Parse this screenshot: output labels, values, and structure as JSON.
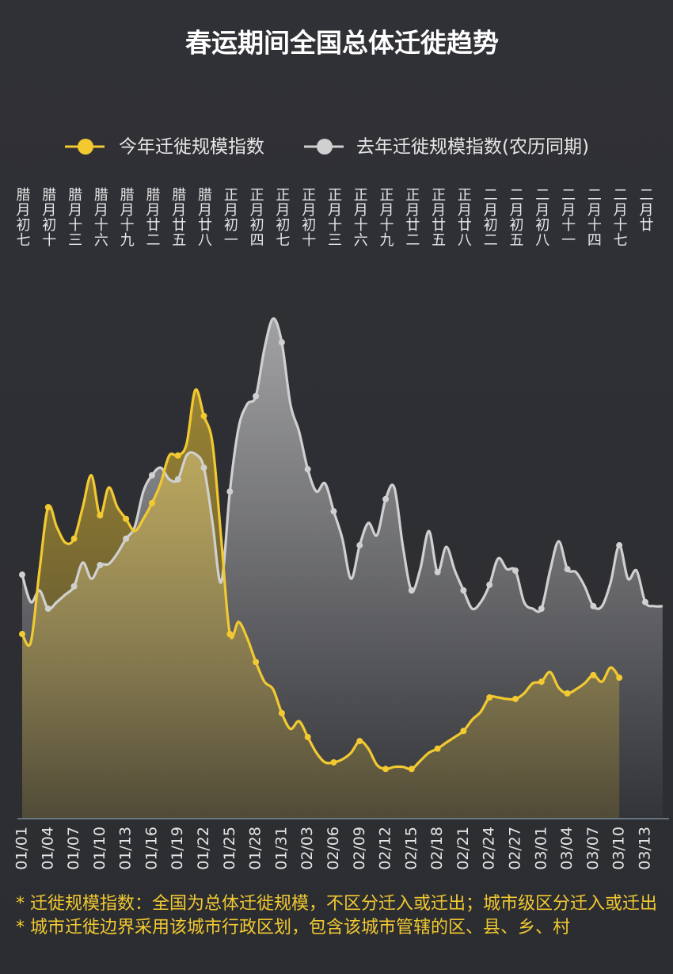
{
  "chart_data": {
    "type": "line",
    "title": "春运期间全国总体迁徙趋势",
    "categories": [
      "01/01",
      null,
      null,
      "01/04",
      null,
      null,
      "01/07",
      null,
      null,
      "01/10",
      null,
      null,
      "01/13",
      null,
      null,
      "01/16",
      null,
      null,
      "01/19",
      null,
      null,
      "01/22",
      null,
      null,
      "01/25",
      null,
      null,
      "01/28",
      null,
      null,
      "01/31",
      null,
      null,
      "02/03",
      null,
      null,
      "02/06",
      null,
      null,
      "02/09",
      null,
      null,
      "02/12",
      null,
      null,
      "02/15",
      null,
      null,
      "02/18",
      null,
      null,
      "02/21",
      null,
      null,
      "02/24",
      null,
      null,
      "02/27",
      null,
      null,
      "03/01",
      null,
      null,
      "03/04",
      null,
      null,
      "03/07",
      null,
      null,
      "03/10",
      null,
      null,
      "03/13",
      null,
      null
    ],
    "lunar_labels": [
      "腊月初七",
      null,
      null,
      "腊月初十",
      null,
      null,
      "腊月十三",
      null,
      null,
      "腊月十六",
      null,
      null,
      "腊月十九",
      null,
      null,
      "腊月廿二",
      null,
      null,
      "腊月廿五",
      null,
      null,
      "腊月廿八",
      null,
      null,
      "正月初一",
      null,
      null,
      "正月初四",
      null,
      null,
      "正月初七",
      null,
      null,
      "正月初十",
      null,
      null,
      "正月十三",
      null,
      null,
      "正月十六",
      null,
      null,
      "正月十九",
      null,
      null,
      "正月廿二",
      null,
      null,
      "正月廿五",
      null,
      null,
      "正月廿八",
      null,
      null,
      "二月初二",
      null,
      null,
      "二月初五",
      null,
      null,
      "二月初八",
      null,
      null,
      "二月十一",
      null,
      null,
      "二月十四",
      null,
      null,
      "二月十七",
      null,
      null,
      "二月廿",
      null,
      null
    ],
    "series": [
      {
        "name": "去年迁徙规模指数(农历同期)",
        "color": "#d0d0d0",
        "values": [
          48.1,
          42.7,
          45.0,
          41.4,
          42.7,
          44.2,
          45.8,
          50.5,
          47.3,
          50.0,
          50.2,
          52.3,
          55.2,
          57.5,
          64.5,
          67.7,
          69.2,
          66.9,
          66.9,
          71.6,
          71.9,
          69.2,
          58.3,
          46.6,
          64.5,
          77.0,
          81.7,
          83.3,
          92.7,
          98.6,
          93.9,
          81.7,
          76.3,
          68.9,
          64.5,
          66.1,
          60.6,
          55.2,
          47.3,
          53.9,
          58.3,
          55.9,
          63.0,
          65.3,
          53.6,
          45.0,
          49.2,
          56.7,
          48.6,
          53.6,
          48.9,
          45.0,
          41.4,
          42.7,
          46.1,
          51.3,
          49.2,
          48.9,
          42.7,
          41.4,
          41.4,
          48.9,
          54.7,
          49.2,
          48.6,
          45.8,
          41.9,
          41.9,
          46.6,
          53.9,
          47.3,
          48.9,
          42.7,
          41.9,
          41.9
        ]
      },
      {
        "name": "今年迁徙规模指数",
        "color": "#f2c931",
        "values": [
          36.4,
          34.8,
          48.9,
          61.4,
          57.5,
          54.4,
          55.2,
          61.4,
          67.7,
          59.8,
          65.3,
          61.4,
          59.1,
          56.7,
          59.1,
          62.2,
          66.1,
          71.6,
          71.6,
          73.9,
          84.5,
          79.4,
          73.9,
          55.2,
          36.4,
          38.8,
          35.6,
          30.9,
          27.0,
          25.5,
          20.8,
          17.7,
          19.2,
          16.1,
          13.0,
          11.1,
          11.1,
          11.7,
          13.0,
          15.3,
          13.8,
          10.6,
          9.8,
          10.2,
          10.2,
          9.8,
          11.4,
          13.0,
          13.8,
          15.0,
          16.1,
          17.3,
          19.5,
          21.1,
          23.9,
          23.9,
          23.6,
          23.6,
          24.7,
          26.7,
          27.0,
          28.9,
          25.8,
          24.7,
          25.5,
          26.7,
          28.3,
          27.0,
          29.8,
          27.8,
          null,
          null,
          null,
          null,
          null
        ]
      }
    ],
    "ylim": [
      0,
      100
    ],
    "notes": [
      "* 迁徙规模指数：全国为总体迁徙规模，不区分迁入或迁出；城市级区分迁入或迁出",
      "* 城市迁徙边界采用该城市行政区划，包含该城市管辖的区、县、乡、村"
    ]
  }
}
